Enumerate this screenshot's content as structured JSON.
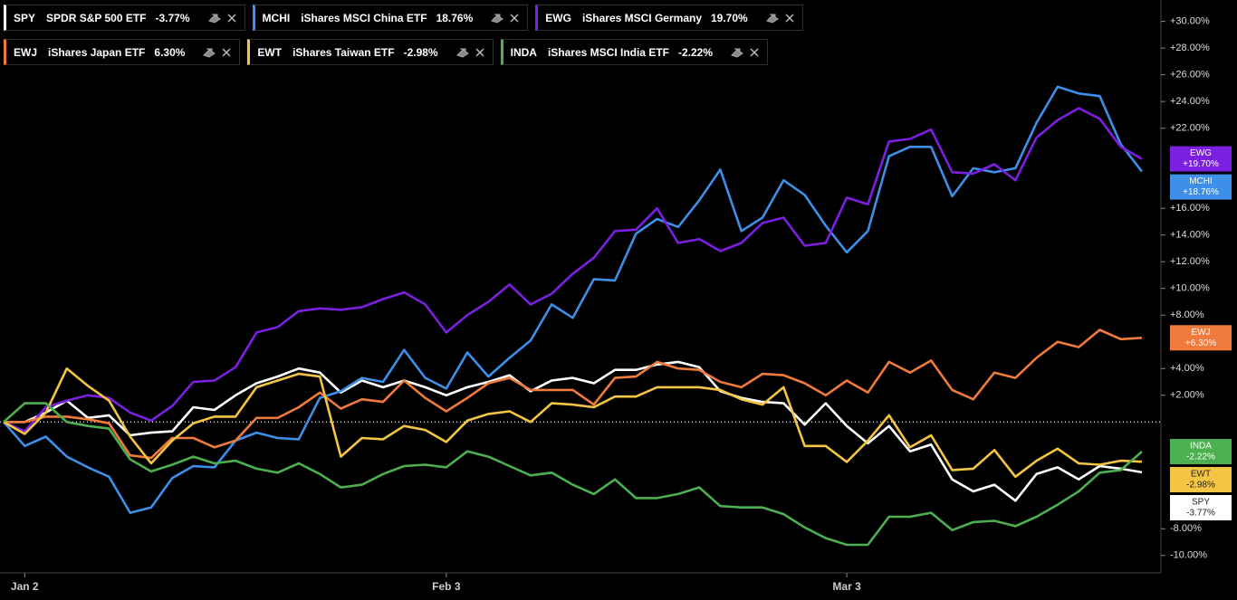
{
  "chart_data": {
    "type": "line",
    "categories": [
      null,
      "Jan 2",
      null,
      null,
      null,
      null,
      null,
      null,
      null,
      null,
      null,
      null,
      null,
      null,
      null,
      null,
      null,
      null,
      null,
      null,
      null,
      "Feb 3",
      null,
      null,
      null,
      null,
      null,
      null,
      null,
      null,
      null,
      null,
      null,
      null,
      null,
      null,
      null,
      null,
      null,
      null,
      "Mar 3",
      null,
      null,
      null,
      null,
      null,
      null,
      null,
      null,
      null,
      null,
      null,
      null,
      null,
      null
    ],
    "series": [
      {
        "name": "SPY",
        "description": "SPDR S&P 500 ETF",
        "legend_label": "-3.77%",
        "badge_label": "-3.77%",
        "color": "#ffffff",
        "values": [
          0,
          0,
          0.7,
          1.6,
          0.3,
          0.5,
          -1.0,
          -0.8,
          -0.7,
          1.1,
          0.9,
          2.0,
          2.9,
          3.4,
          4.0,
          3.7,
          2.2,
          3.1,
          2.6,
          3.1,
          2.6,
          2.0,
          2.6,
          3.0,
          3.5,
          2.3,
          3.1,
          3.3,
          2.9,
          3.9,
          3.9,
          4.3,
          4.5,
          4.1,
          2.3,
          1.8,
          1.5,
          1.4,
          -0.2,
          1.4,
          -0.3,
          -1.6,
          -0.3,
          -2.2,
          -1.7,
          -4.3,
          -5.2,
          -4.7,
          -5.9,
          -3.9,
          -3.4,
          -4.3,
          -3.3,
          -3.5,
          -3.77
        ]
      },
      {
        "name": "MCHI",
        "description": "iShares MSCI China ETF",
        "legend_label": "18.76%",
        "badge_label": "+18.76%",
        "color": "#3d8fe8",
        "values": [
          0,
          -1.8,
          -1.1,
          -2.6,
          -3.4,
          -4.1,
          -6.8,
          -6.4,
          -4.2,
          -3.3,
          -3.4,
          -1.4,
          -0.8,
          -1.2,
          -1.3,
          1.8,
          2.3,
          3.3,
          3.0,
          5.4,
          3.3,
          2.5,
          5.2,
          3.4,
          4.8,
          6.1,
          8.8,
          7.8,
          10.7,
          10.6,
          14.1,
          15.2,
          14.6,
          16.6,
          18.9,
          14.3,
          15.3,
          18.1,
          17.0,
          14.7,
          12.7,
          14.3,
          19.9,
          20.6,
          20.6,
          16.9,
          19.0,
          18.7,
          19.0,
          22.4,
          25.1,
          24.6,
          24.4,
          20.8,
          18.76
        ]
      },
      {
        "name": "EWG",
        "description": "iShares MSCI Germany",
        "legend_label": "19.70%",
        "badge_label": "+19.70%",
        "color": "#7b1fe0",
        "values": [
          0,
          -0.7,
          1.1,
          1.6,
          2.0,
          1.8,
          0.7,
          0.1,
          1.2,
          3.0,
          3.1,
          4.1,
          6.7,
          7.1,
          8.3,
          8.5,
          8.4,
          8.6,
          9.2,
          9.7,
          8.8,
          6.7,
          8.0,
          9.0,
          10.3,
          8.8,
          9.6,
          11.1,
          12.3,
          14.3,
          14.4,
          16.0,
          13.4,
          13.7,
          12.8,
          13.4,
          14.9,
          15.3,
          13.2,
          13.4,
          16.8,
          16.3,
          21.0,
          21.2,
          21.9,
          18.7,
          18.6,
          19.3,
          18.1,
          21.3,
          22.6,
          23.5,
          22.7,
          20.6,
          19.7
        ]
      },
      {
        "name": "EWJ",
        "description": "iShares Japan ETF",
        "legend_label": "6.30%",
        "badge_label": "+6.30%",
        "color": "#ef7a3c",
        "values": [
          0,
          0,
          0.4,
          0.4,
          0.2,
          -0.1,
          -2.5,
          -2.7,
          -1.2,
          -1.2,
          -1.9,
          -1.4,
          0.3,
          0.3,
          1.1,
          2.2,
          1.0,
          1.7,
          1.5,
          3.1,
          1.8,
          0.8,
          1.8,
          2.9,
          3.3,
          2.4,
          2.4,
          2.4,
          1.3,
          3.3,
          3.4,
          4.5,
          4.0,
          3.9,
          3.0,
          2.6,
          3.6,
          3.5,
          2.9,
          2.0,
          3.1,
          2.2,
          4.5,
          3.7,
          4.6,
          2.4,
          1.7,
          3.7,
          3.3,
          4.8,
          6.0,
          5.6,
          6.9,
          6.2,
          6.3
        ]
      },
      {
        "name": "EWT",
        "description": "iShares Taiwan ETF",
        "legend_label": "-2.98%",
        "badge_label": "-2.98%",
        "color": "#f4c542",
        "values": [
          0,
          -0.9,
          0.7,
          4.0,
          2.7,
          1.6,
          -1.1,
          -3.1,
          -1.4,
          -0.1,
          0.4,
          0.4,
          2.6,
          3.1,
          3.6,
          3.4,
          -2.6,
          -1.2,
          -1.3,
          -0.3,
          -0.6,
          -1.5,
          0.1,
          0.6,
          0.8,
          0,
          1.4,
          1.3,
          1.1,
          1.9,
          1.9,
          2.6,
          2.6,
          2.6,
          2.4,
          1.7,
          1.3,
          2.6,
          -1.8,
          -1.8,
          -3.0,
          -1.4,
          0.5,
          -1.9,
          -1.0,
          -3.6,
          -3.5,
          -2.1,
          -4.1,
          -2.9,
          -2.0,
          -3.1,
          -3.2,
          -2.9,
          -2.98
        ]
      },
      {
        "name": "INDA",
        "description": "iShares MSCI India ETF",
        "legend_label": "-2.22%",
        "badge_label": "-2.22%",
        "color": "#4caf50",
        "values": [
          0,
          1.4,
          1.4,
          0,
          -0.3,
          -0.5,
          -2.8,
          -3.7,
          -3.2,
          -2.6,
          -3.1,
          -2.9,
          -3.5,
          -3.8,
          -3.1,
          -3.9,
          -4.9,
          -4.7,
          -3.9,
          -3.3,
          -3.2,
          -3.4,
          -2.2,
          -2.6,
          -3.3,
          -4.0,
          -3.8,
          -4.7,
          -5.4,
          -4.3,
          -5.7,
          -5.7,
          -5.4,
          -4.9,
          -6.3,
          -6.4,
          -6.4,
          -6.9,
          -7.9,
          -8.7,
          -9.2,
          -9.2,
          -7.1,
          -7.1,
          -6.8,
          -8.1,
          -7.5,
          -7.4,
          -7.8,
          -7.1,
          -6.2,
          -5.2,
          -3.8,
          -3.6,
          -2.22
        ]
      }
    ],
    "ylim": [
      -11.3,
      31.6
    ],
    "yticks": [
      {
        "value": 30,
        "label": "+30.00%"
      },
      {
        "value": 28,
        "label": "+28.00%"
      },
      {
        "value": 26,
        "label": "+26.00%"
      },
      {
        "value": 24,
        "label": "+24.00%"
      },
      {
        "value": 22,
        "label": "+22.00%"
      },
      {
        "value": 16,
        "label": "+16.00%"
      },
      {
        "value": 14,
        "label": "+14.00%"
      },
      {
        "value": 12,
        "label": "+12.00%"
      },
      {
        "value": 10,
        "label": "+10.00%"
      },
      {
        "value": 8,
        "label": "+8.00%"
      },
      {
        "value": 4,
        "label": "+4.00%"
      },
      {
        "value": 2,
        "label": "+2.00%"
      },
      {
        "value": -8,
        "label": "-8.00%"
      },
      {
        "value": -10,
        "label": "-10.00%"
      }
    ],
    "grid": false
  }
}
